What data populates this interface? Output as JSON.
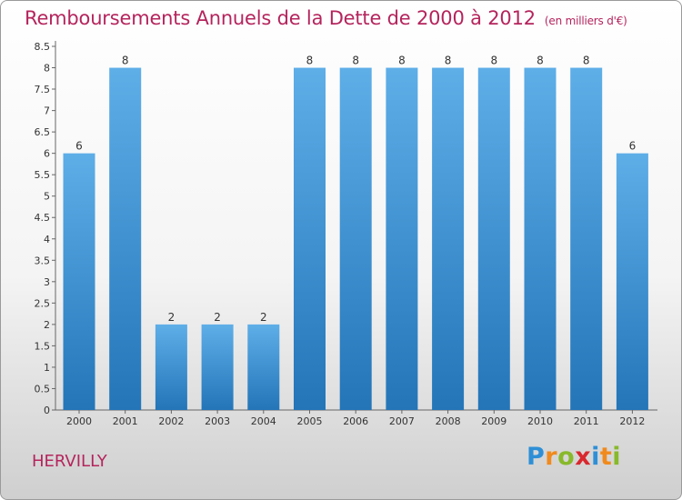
{
  "chart_data": {
    "type": "bar",
    "title": "Remboursements Annuels de la Dette de 2000 à 2012",
    "unit": "(en milliers d'€)",
    "categories": [
      "2000",
      "2001",
      "2002",
      "2003",
      "2004",
      "2005",
      "2006",
      "2007",
      "2008",
      "2009",
      "2010",
      "2011",
      "2012"
    ],
    "values": [
      6,
      8,
      2,
      2,
      2,
      8,
      8,
      8,
      8,
      8,
      8,
      8,
      6
    ],
    "data_labels": [
      "6",
      "8",
      "2",
      "2",
      "2",
      "8",
      "8",
      "8",
      "8",
      "8",
      "8",
      "8",
      "6"
    ],
    "ylim": [
      0,
      8.5
    ],
    "yticks": [
      0,
      0.5,
      1,
      1.5,
      2,
      2.5,
      3,
      3.5,
      4,
      4.5,
      5,
      5.5,
      6,
      6.5,
      7,
      7.5,
      8,
      8.5
    ],
    "ytick_labels": [
      "0",
      "0.5",
      "1",
      "1.5",
      "2",
      "2.5",
      "3",
      "3.5",
      "4",
      "4.5",
      "5",
      "5.5",
      "6",
      "6.5",
      "7",
      "7.5",
      "8",
      "8.5"
    ],
    "grid": false,
    "bar_color_top": "#5eaee8",
    "bar_color_bottom": "#2375b8"
  },
  "footer": {
    "location": "HERVILLY",
    "logo_letters": [
      "P",
      "r",
      "o",
      "x",
      "i",
      "t",
      "i"
    ]
  }
}
